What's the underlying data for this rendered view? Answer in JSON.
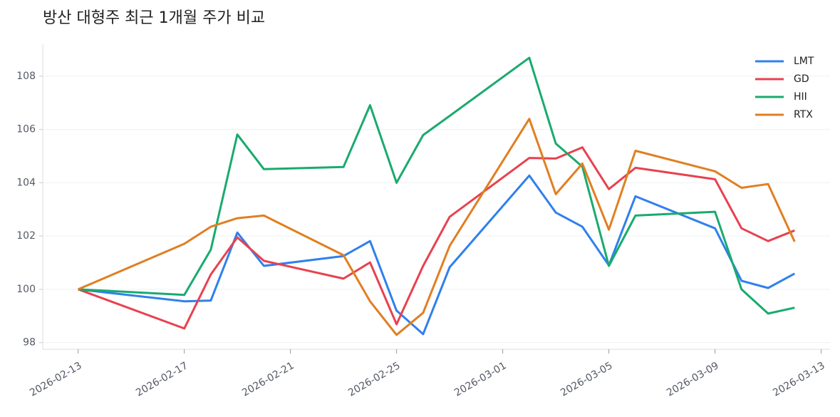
{
  "chart_data": {
    "type": "line",
    "title": "방산 대형주 최근 1개월 주가 비교",
    "x": [
      "2026-02-13",
      "2026-02-17",
      "2026-02-18",
      "2026-02-19",
      "2026-02-20",
      "2026-02-23",
      "2026-02-24",
      "2026-02-25",
      "2026-02-26",
      "2026-02-27",
      "2026-03-02",
      "2026-03-03",
      "2026-03-04",
      "2026-03-05",
      "2026-03-06",
      "2026-03-09",
      "2026-03-10",
      "2026-03-11",
      "2026-03-12"
    ],
    "series": [
      {
        "name": "LMT",
        "color": "#2f80ed",
        "values": [
          100,
          99.55,
          99.58,
          102.13,
          100.88,
          101.25,
          101.81,
          99.2,
          98.32,
          100.83,
          104.27,
          102.88,
          102.35,
          100.9,
          103.49,
          102.29,
          100.32,
          100.05,
          100.59
        ]
      },
      {
        "name": "GD",
        "color": "#e8414f",
        "values": [
          100,
          98.53,
          100.56,
          101.95,
          101.07,
          100.4,
          101.01,
          98.69,
          100.88,
          102.72,
          104.93,
          104.91,
          105.33,
          103.76,
          104.56,
          104.13,
          102.29,
          101.81,
          102.21
        ]
      },
      {
        "name": "HII",
        "color": "#1aaa6e",
        "values": [
          100,
          99.79,
          101.49,
          105.81,
          104.51,
          104.59,
          106.91,
          104.0,
          105.79,
          106.51,
          108.69,
          105.47,
          104.6,
          100.88,
          102.77,
          102.91,
          100.0,
          99.09,
          99.31
        ]
      },
      {
        "name": "RTX",
        "color": "#e07f22",
        "values": [
          100,
          101.71,
          102.35,
          102.67,
          102.77,
          101.28,
          99.55,
          98.29,
          99.12,
          101.63,
          106.4,
          103.57,
          104.72,
          102.24,
          105.2,
          104.43,
          103.81,
          103.95,
          101.79
        ]
      }
    ],
    "xlim": [
      "2026-02-11T16:00",
      "2026-03-13T08:00"
    ],
    "xticks": [
      "2026-02-13",
      "2026-02-17",
      "2026-02-21",
      "2026-02-25",
      "2026-03-01",
      "2026-03-05",
      "2026-03-09",
      "2026-03-13"
    ],
    "ylim": [
      97.75,
      109.2
    ],
    "yticks": [
      98,
      100,
      102,
      104,
      106,
      108
    ],
    "grid": true,
    "legend": "upper right"
  }
}
